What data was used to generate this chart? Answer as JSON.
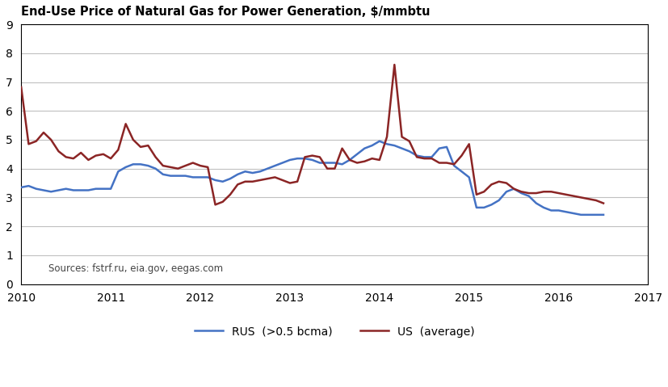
{
  "title": "End-Use Price of Natural Gas for Power Generation, $/mmbtu",
  "source_text": "Sources: fstrf.ru, eia.gov, eegas.com",
  "legend_rus": "RUS  (>0.5 bcma)",
  "legend_us": "US  (average)",
  "xlim": [
    2010,
    2017
  ],
  "ylim": [
    0,
    9
  ],
  "yticks": [
    0,
    1,
    2,
    3,
    4,
    5,
    6,
    7,
    8,
    9
  ],
  "xticks": [
    2010,
    2011,
    2012,
    2013,
    2014,
    2015,
    2016,
    2017
  ],
  "color_rus": "#4472C4",
  "color_us": "#8B2525",
  "linewidth": 1.8,
  "bg_color": "#FFFFFF",
  "grid_color": "#C0C0C0",
  "rus_x": [
    2010.0,
    2010.083,
    2010.167,
    2010.25,
    2010.333,
    2010.417,
    2010.5,
    2010.583,
    2010.667,
    2010.75,
    2010.833,
    2010.917,
    2011.0,
    2011.083,
    2011.167,
    2011.25,
    2011.333,
    2011.417,
    2011.5,
    2011.583,
    2011.667,
    2011.75,
    2011.833,
    2011.917,
    2012.0,
    2012.083,
    2012.167,
    2012.25,
    2012.333,
    2012.417,
    2012.5,
    2012.583,
    2012.667,
    2012.75,
    2012.833,
    2012.917,
    2013.0,
    2013.083,
    2013.167,
    2013.25,
    2013.333,
    2013.417,
    2013.5,
    2013.583,
    2013.667,
    2013.75,
    2013.833,
    2013.917,
    2014.0,
    2014.083,
    2014.167,
    2014.25,
    2014.333,
    2014.417,
    2014.5,
    2014.583,
    2014.667,
    2014.75,
    2014.833,
    2014.917,
    2015.0,
    2015.083,
    2015.167,
    2015.25,
    2015.333,
    2015.417,
    2015.5,
    2015.583,
    2015.667,
    2015.75,
    2015.833,
    2015.917,
    2016.0,
    2016.083,
    2016.167,
    2016.25,
    2016.333,
    2016.417,
    2016.5
  ],
  "rus_y": [
    3.35,
    3.4,
    3.3,
    3.25,
    3.2,
    3.25,
    3.3,
    3.25,
    3.25,
    3.25,
    3.3,
    3.3,
    3.3,
    3.9,
    4.05,
    4.15,
    4.15,
    4.1,
    4.0,
    3.8,
    3.75,
    3.75,
    3.75,
    3.7,
    3.7,
    3.7,
    3.6,
    3.55,
    3.65,
    3.8,
    3.9,
    3.85,
    3.9,
    4.0,
    4.1,
    4.2,
    4.3,
    4.35,
    4.35,
    4.3,
    4.2,
    4.2,
    4.2,
    4.15,
    4.3,
    4.5,
    4.7,
    4.8,
    4.95,
    4.85,
    4.8,
    4.7,
    4.6,
    4.45,
    4.4,
    4.4,
    4.7,
    4.75,
    4.1,
    3.9,
    3.7,
    2.65,
    2.65,
    2.75,
    2.9,
    3.2,
    3.3,
    3.15,
    3.05,
    2.8,
    2.65,
    2.55,
    2.55,
    2.5,
    2.45,
    2.4,
    2.4,
    2.4,
    2.4
  ],
  "us_x": [
    2010.0,
    2010.083,
    2010.167,
    2010.25,
    2010.333,
    2010.417,
    2010.5,
    2010.583,
    2010.667,
    2010.75,
    2010.833,
    2010.917,
    2011.0,
    2011.083,
    2011.167,
    2011.25,
    2011.333,
    2011.417,
    2011.5,
    2011.583,
    2011.667,
    2011.75,
    2011.833,
    2011.917,
    2012.0,
    2012.083,
    2012.167,
    2012.25,
    2012.333,
    2012.417,
    2012.5,
    2012.583,
    2012.667,
    2012.75,
    2012.833,
    2012.917,
    2013.0,
    2013.083,
    2013.167,
    2013.25,
    2013.333,
    2013.417,
    2013.5,
    2013.583,
    2013.667,
    2013.75,
    2013.833,
    2013.917,
    2014.0,
    2014.083,
    2014.167,
    2014.25,
    2014.333,
    2014.417,
    2014.5,
    2014.583,
    2014.667,
    2014.75,
    2014.833,
    2014.917,
    2015.0,
    2015.083,
    2015.167,
    2015.25,
    2015.333,
    2015.417,
    2015.5,
    2015.583,
    2015.667,
    2015.75,
    2015.833,
    2015.917,
    2016.0,
    2016.083,
    2016.167,
    2016.25,
    2016.333,
    2016.417,
    2016.5
  ],
  "us_y": [
    6.82,
    4.85,
    4.95,
    5.25,
    5.0,
    4.6,
    4.4,
    4.35,
    4.55,
    4.3,
    4.45,
    4.5,
    4.35,
    4.65,
    5.55,
    5.0,
    4.75,
    4.8,
    4.4,
    4.1,
    4.05,
    4.0,
    4.1,
    4.2,
    4.1,
    4.05,
    2.75,
    2.85,
    3.1,
    3.45,
    3.55,
    3.55,
    3.6,
    3.65,
    3.7,
    3.6,
    3.5,
    3.55,
    4.4,
    4.45,
    4.4,
    4.0,
    4.0,
    4.7,
    4.3,
    4.2,
    4.25,
    4.35,
    4.3,
    5.1,
    7.6,
    5.1,
    4.95,
    4.4,
    4.35,
    4.35,
    4.2,
    4.2,
    4.15,
    4.45,
    4.85,
    3.1,
    3.2,
    3.45,
    3.55,
    3.5,
    3.3,
    3.2,
    3.15,
    3.15,
    3.2,
    3.2,
    3.15,
    3.1,
    3.05,
    3.0,
    2.95,
    2.9,
    2.8
  ]
}
